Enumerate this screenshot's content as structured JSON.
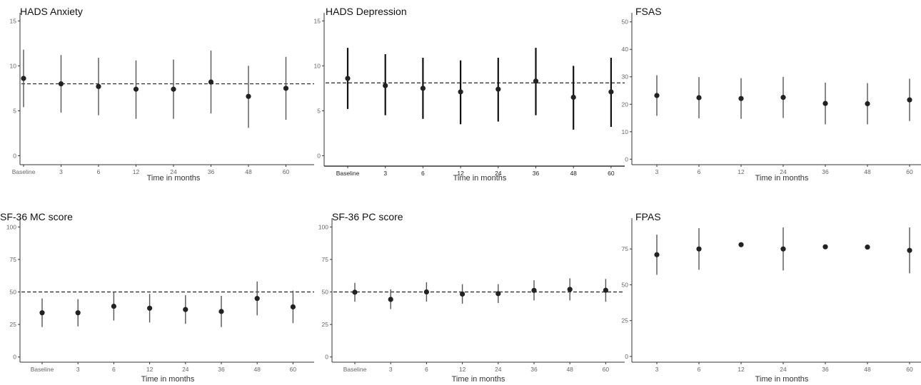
{
  "charts": [
    {
      "type": "scatter",
      "title": "HADS Anxiety",
      "xlabel": "Time in months",
      "ylabel": "",
      "categories": [
        "Baseline",
        "3",
        "6",
        "12",
        "24",
        "36",
        "48",
        "60"
      ],
      "ylim": [
        -1,
        15.5
      ],
      "yticks": [
        0,
        5,
        10,
        15
      ],
      "values": [
        8.6,
        8.0,
        7.7,
        7.4,
        7.4,
        8.2,
        6.6,
        7.5
      ],
      "lower": [
        5.4,
        4.8,
        4.5,
        4.1,
        4.1,
        4.7,
        3.1,
        4.0
      ],
      "upper": [
        11.8,
        11.2,
        10.9,
        10.6,
        10.7,
        11.7,
        10.0,
        11.0
      ],
      "reference_line": 8.0,
      "grid": false,
      "legend": false
    },
    {
      "type": "scatter",
      "title": "HADS Depression",
      "xlabel": "Time in months",
      "ylabel": "",
      "categories": [
        "Baseline",
        "3",
        "6",
        "12",
        "24",
        "36",
        "48",
        "60"
      ],
      "ylim": [
        -1,
        15.5
      ],
      "yticks": [
        0,
        5,
        10,
        15
      ],
      "values": [
        8.6,
        7.8,
        7.5,
        7.1,
        7.4,
        8.3,
        6.5,
        7.1
      ],
      "lower": [
        5.2,
        4.5,
        4.1,
        3.5,
        3.8,
        4.5,
        2.9,
        3.2
      ],
      "upper": [
        12.0,
        11.3,
        10.9,
        10.6,
        10.9,
        12.0,
        10.0,
        10.9
      ],
      "reference_line": 8.1,
      "grid": false,
      "legend": false
    },
    {
      "type": "scatter",
      "title": "FSAS",
      "xlabel": "Time in months",
      "ylabel": "",
      "categories": [
        "3",
        "6",
        "12",
        "24",
        "36",
        "48",
        "60"
      ],
      "ylim": [
        -2,
        52
      ],
      "yticks": [
        0,
        10,
        20,
        30,
        40,
        50
      ],
      "values": [
        23.2,
        22.4,
        22.1,
        22.5,
        20.3,
        20.2,
        21.6
      ],
      "lower": [
        15.8,
        14.9,
        14.7,
        15.0,
        12.7,
        12.7,
        13.9
      ],
      "upper": [
        30.6,
        29.9,
        29.5,
        30.0,
        27.9,
        27.7,
        29.3
      ],
      "reference_line": null,
      "grid": false,
      "legend": false
    },
    {
      "type": "scatter",
      "title": "SF-36 MC score",
      "xlabel": "Time in months",
      "ylabel": "",
      "categories": [
        "Baseline",
        "3",
        "6",
        "12",
        "24",
        "36",
        "48",
        "60"
      ],
      "ylim": [
        -4,
        104
      ],
      "yticks": [
        0,
        25,
        50,
        75,
        100
      ],
      "values": [
        34,
        34,
        39,
        37.5,
        36.5,
        35,
        45,
        38.5
      ],
      "lower": [
        23,
        23.5,
        28,
        26.5,
        25.5,
        23,
        32,
        26
      ],
      "upper": [
        45,
        44.5,
        50,
        48.5,
        47.5,
        47,
        58,
        51
      ],
      "reference_line": 50,
      "grid": false,
      "legend": false
    },
    {
      "type": "scatter",
      "title": "SF-36 PC score",
      "xlabel": "Time in months",
      "ylabel": "",
      "categories": [
        "Baseline",
        "3",
        "6",
        "12",
        "24",
        "36",
        "48",
        "60"
      ],
      "ylim": [
        -4,
        104
      ],
      "yticks": [
        0,
        25,
        50,
        75,
        100
      ],
      "values": [
        49.8,
        44.3,
        50.0,
        48.4,
        48.7,
        51.2,
        52.0,
        51.3
      ],
      "lower": [
        42.5,
        36.8,
        42.5,
        41.0,
        41.5,
        43.5,
        43.5,
        42.5
      ],
      "upper": [
        57.0,
        52.0,
        57.5,
        56.0,
        56.0,
        59.0,
        60.5,
        60.0
      ],
      "reference_line": 50,
      "grid": false,
      "legend": false
    },
    {
      "type": "scatter",
      "title": "FPAS",
      "xlabel": "Time in months",
      "ylabel": "",
      "categories": [
        "3",
        "6",
        "12",
        "24",
        "36",
        "48",
        "60"
      ],
      "ylim": [
        -4,
        94
      ],
      "yticks": [
        0,
        25,
        50,
        75
      ],
      "values": [
        71,
        75,
        78,
        75,
        76.5,
        76.3,
        74
      ],
      "lower": [
        57,
        60.5,
        78,
        60,
        76.5,
        76.3,
        58
      ],
      "upper": [
        85,
        89.5,
        78,
        90,
        76.5,
        76.3,
        90
      ],
      "reference_line": null,
      "grid": false,
      "legend": false
    }
  ]
}
